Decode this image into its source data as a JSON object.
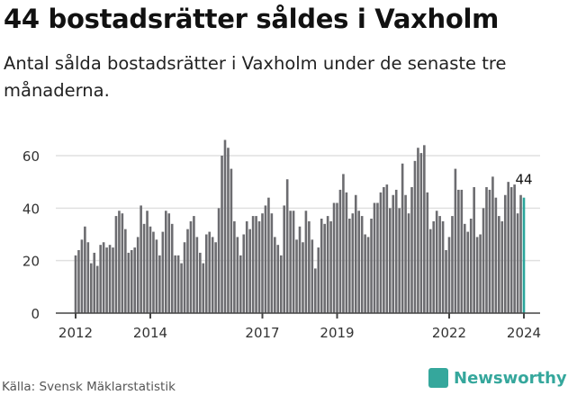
{
  "title": "44 bostadsrätter såldes i Vaxholm",
  "subtitle": "Antal sålda bostadsrätter i Vaxholm under de senaste tre månaderna.",
  "source": "Källa: Svensk Mäklarstatistik",
  "logo": "Newsworthy",
  "colors": {
    "bar": "#6c6c70",
    "highlight": "#2aa59b",
    "grid": "#e0e0e0"
  },
  "chart_data": {
    "type": "bar",
    "title": "44 bostadsrätter såldes i Vaxholm",
    "xlabel": "",
    "ylabel": "",
    "ylim": [
      0,
      70
    ],
    "yticks": [
      0,
      20,
      40,
      60
    ],
    "xticks": [
      {
        "label": "2012",
        "index": 0
      },
      {
        "label": "2014",
        "index": 24
      },
      {
        "label": "2017",
        "index": 60
      },
      {
        "label": "2019",
        "index": 84
      },
      {
        "label": "2022",
        "index": 120
      },
      {
        "label": "2024",
        "index": 144
      }
    ],
    "start": "2012-01",
    "end": "2024-01",
    "frequency": "monthly",
    "annotation": {
      "label": "44",
      "index": 144
    },
    "values": [
      22,
      24,
      28,
      33,
      27,
      19,
      23,
      18,
      26,
      27,
      25,
      26,
      25,
      37,
      39,
      38,
      32,
      23,
      24,
      25,
      29,
      41,
      34,
      39,
      33,
      31,
      28,
      22,
      31,
      39,
      38,
      34,
      22,
      22,
      19,
      27,
      32,
      35,
      37,
      29,
      23,
      19,
      30,
      31,
      29,
      27,
      40,
      60,
      66,
      63,
      55,
      35,
      29,
      22,
      30,
      35,
      32,
      37,
      37,
      35,
      38,
      41,
      44,
      38,
      29,
      26,
      22,
      41,
      51,
      39,
      39,
      28,
      33,
      27,
      39,
      35,
      28,
      17,
      25,
      36,
      34,
      37,
      35,
      42,
      42,
      47,
      53,
      46,
      36,
      38,
      45,
      39,
      37,
      30,
      29,
      36,
      42,
      42,
      46,
      48,
      49,
      40,
      45,
      47,
      40,
      57,
      45,
      38,
      48,
      58,
      63,
      61,
      64,
      46,
      32,
      35,
      39,
      37,
      35,
      24,
      29,
      37,
      55,
      47,
      47,
      34,
      31,
      36,
      48,
      29,
      30,
      40,
      48,
      47,
      52,
      44,
      37,
      35,
      45,
      50,
      48,
      49,
      38,
      45,
      44
    ]
  }
}
